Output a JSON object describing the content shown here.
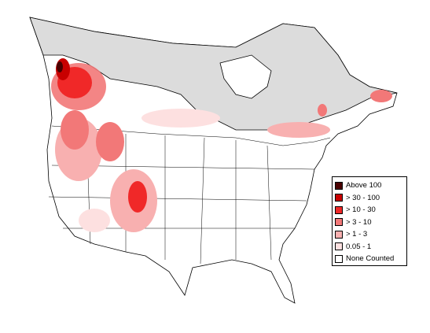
{
  "legend": {
    "items": [
      {
        "label": "Above 100",
        "color": "#4a0000"
      },
      {
        "label": "> 30 - 100",
        "color": "#c80000"
      },
      {
        "label": "> 10 - 30",
        "color": "#f02828"
      },
      {
        "label": "> 3 - 10",
        "color": "#f27878"
      },
      {
        "label": "> 1 - 3",
        "color": "#f8b0b0"
      },
      {
        "label": "0.05 - 1",
        "color": "#fde0e0"
      },
      {
        "label": "None Counted",
        "color": "#ffffff"
      }
    ]
  }
}
